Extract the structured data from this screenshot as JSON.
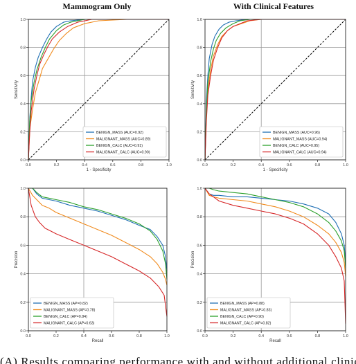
{
  "column_titles": [
    "Mammogram Only",
    "With Clinical Features"
  ],
  "colors": {
    "benign_mass": "#1f6fb4",
    "malignant_mass": "#f08a1c",
    "benign_calc": "#2ca02c",
    "malignant_calc": "#d62728",
    "diagonal": "#000000",
    "grid": "#9a9a9a"
  },
  "caption_fragment": "(A) Results comparing performance with and without additional clinical",
  "chart_data": [
    {
      "type": "line",
      "panel": "roc-mammogram-only",
      "xlabel": "1 - Specificity",
      "ylabel": "Sensitivity",
      "xlim": [
        0,
        1
      ],
      "ylim": [
        0,
        1
      ],
      "xticks": [
        "0.0",
        "0.2",
        "0.4",
        "0.6",
        "0.8",
        "1.0"
      ],
      "yticks": [
        "0.0",
        "0.2",
        "0.4",
        "0.6",
        "0.8",
        "1.0"
      ],
      "grid": true,
      "legend": "bottom-right",
      "diagonal": true,
      "series": [
        {
          "name": "BENIGN_MASS (AUC=0.92)",
          "color": "#1f6fb4",
          "x": [
            0,
            0.01,
            0.02,
            0.03,
            0.05,
            0.07,
            0.1,
            0.13,
            0.16,
            0.2,
            0.25,
            0.3,
            0.4,
            0.6,
            0.8,
            1.0
          ],
          "y": [
            0,
            0.3,
            0.45,
            0.56,
            0.66,
            0.73,
            0.8,
            0.86,
            0.91,
            0.95,
            0.98,
            0.99,
            1.0,
            1.0,
            1.0,
            1.0
          ]
        },
        {
          "name": "MALIGNANT_MASS (AUC=0.89)",
          "color": "#f08a1c",
          "x": [
            0,
            0.01,
            0.03,
            0.05,
            0.08,
            0.1,
            0.14,
            0.18,
            0.22,
            0.27,
            0.32,
            0.4,
            0.5,
            0.7,
            1.0
          ],
          "y": [
            0,
            0.22,
            0.36,
            0.48,
            0.58,
            0.65,
            0.72,
            0.79,
            0.85,
            0.9,
            0.94,
            0.97,
            0.99,
            1.0,
            1.0
          ]
        },
        {
          "name": "BENIGN_CALC (AUC=0.91)",
          "color": "#2ca02c",
          "x": [
            0,
            0.01,
            0.02,
            0.04,
            0.06,
            0.09,
            0.12,
            0.15,
            0.2,
            0.25,
            0.3,
            0.4,
            0.6,
            1.0
          ],
          "y": [
            0,
            0.28,
            0.42,
            0.55,
            0.64,
            0.73,
            0.8,
            0.86,
            0.92,
            0.96,
            0.98,
            1.0,
            1.0,
            1.0
          ]
        },
        {
          "name": "MALIGNANT_CALC (AUC=0.90)",
          "color": "#d62728",
          "x": [
            0,
            0.01,
            0.02,
            0.04,
            0.06,
            0.08,
            0.11,
            0.14,
            0.17,
            0.22,
            0.28,
            0.35,
            0.45,
            0.6,
            1.0
          ],
          "y": [
            0,
            0.2,
            0.35,
            0.5,
            0.6,
            0.68,
            0.75,
            0.81,
            0.86,
            0.91,
            0.95,
            0.98,
            1.0,
            1.0,
            1.0
          ]
        }
      ]
    },
    {
      "type": "line",
      "panel": "roc-with-clinical",
      "xlabel": "1 - Specificity",
      "ylabel": "Sensitivity",
      "xlim": [
        0,
        1
      ],
      "ylim": [
        0,
        1
      ],
      "xticks": [
        "0.0",
        "0.2",
        "0.4",
        "0.6",
        "0.8",
        "1.0"
      ],
      "yticks": [
        "0.0",
        "0.2",
        "0.4",
        "0.6",
        "0.8",
        "1.0"
      ],
      "grid": true,
      "legend": "bottom-right",
      "diagonal": true,
      "series": [
        {
          "name": "BENIGN_MASS (AUC=0.96)",
          "color": "#1f6fb4",
          "x": [
            0,
            0.01,
            0.02,
            0.03,
            0.05,
            0.07,
            0.1,
            0.13,
            0.17,
            0.22,
            0.3,
            0.5,
            1.0
          ],
          "y": [
            0,
            0.42,
            0.6,
            0.72,
            0.82,
            0.88,
            0.93,
            0.96,
            0.98,
            0.99,
            1.0,
            1.0,
            1.0
          ]
        },
        {
          "name": "MALIGNANT_MASS (AUC=0.94)",
          "color": "#f08a1c",
          "x": [
            0,
            0.01,
            0.02,
            0.04,
            0.06,
            0.09,
            0.12,
            0.16,
            0.2,
            0.26,
            0.32,
            0.4,
            0.6,
            1.0
          ],
          "y": [
            0,
            0.32,
            0.5,
            0.64,
            0.74,
            0.82,
            0.88,
            0.92,
            0.95,
            0.97,
            0.99,
            1.0,
            1.0,
            1.0
          ]
        },
        {
          "name": "BENIGN_CALC (AUC=0.95)",
          "color": "#2ca02c",
          "x": [
            0,
            0.01,
            0.02,
            0.04,
            0.06,
            0.08,
            0.11,
            0.15,
            0.2,
            0.25,
            0.32,
            0.5,
            1.0
          ],
          "y": [
            0,
            0.36,
            0.55,
            0.7,
            0.79,
            0.85,
            0.9,
            0.94,
            0.97,
            0.99,
            1.0,
            1.0,
            1.0
          ]
        },
        {
          "name": "MALIGNANT_CALC (AUC=0.94)",
          "color": "#d62728",
          "x": [
            0,
            0.01,
            0.02,
            0.04,
            0.06,
            0.09,
            0.12,
            0.16,
            0.2,
            0.25,
            0.3,
            0.4,
            0.6,
            1.0
          ],
          "y": [
            0,
            0.28,
            0.46,
            0.6,
            0.71,
            0.8,
            0.87,
            0.92,
            0.95,
            0.97,
            0.99,
            1.0,
            1.0,
            1.0
          ]
        }
      ]
    },
    {
      "type": "line",
      "panel": "pr-mammogram-only",
      "xlabel": "Recall",
      "ylabel": "Precision",
      "xlim": [
        0,
        1
      ],
      "ylim": [
        0,
        1
      ],
      "xticks": [
        "0.0",
        "0.2",
        "0.4",
        "0.6",
        "0.8",
        "1.0"
      ],
      "yticks": [
        "0.0",
        "0.2",
        "0.4",
        "0.6",
        "0.8",
        "1.0"
      ],
      "grid": true,
      "legend": "bottom-left",
      "diagonal": false,
      "series": [
        {
          "name": "BENIGN_MASS (AP=0.82)",
          "color": "#1f6fb4",
          "x": [
            0.0,
            0.03,
            0.06,
            0.1,
            0.15,
            0.2,
            0.3,
            0.4,
            0.5,
            0.6,
            0.7,
            0.8,
            0.88,
            0.93,
            0.97,
            0.99,
            1.0
          ],
          "y": [
            1.0,
            1.0,
            0.96,
            0.93,
            0.92,
            0.91,
            0.88,
            0.86,
            0.84,
            0.81,
            0.78,
            0.74,
            0.71,
            0.66,
            0.6,
            0.52,
            0.42
          ]
        },
        {
          "name": "MALIGNANT_MASS (AP=0.78)",
          "color": "#f08a1c",
          "x": [
            0.0,
            0.03,
            0.06,
            0.1,
            0.15,
            0.2,
            0.3,
            0.4,
            0.5,
            0.6,
            0.7,
            0.8,
            0.88,
            0.93,
            0.97,
            0.99,
            1.0
          ],
          "y": [
            1.0,
            0.95,
            0.92,
            0.88,
            0.86,
            0.83,
            0.79,
            0.75,
            0.71,
            0.67,
            0.62,
            0.57,
            0.52,
            0.47,
            0.41,
            0.36,
            0.32
          ]
        },
        {
          "name": "BENIGN_CALC (AP=0.84)",
          "color": "#2ca02c",
          "x": [
            0.0,
            0.03,
            0.06,
            0.1,
            0.15,
            0.2,
            0.3,
            0.4,
            0.5,
            0.6,
            0.7,
            0.8,
            0.88,
            0.93,
            0.97,
            0.99,
            1.0
          ],
          "y": [
            1.0,
            1.0,
            0.97,
            0.94,
            0.93,
            0.92,
            0.9,
            0.87,
            0.85,
            0.82,
            0.79,
            0.75,
            0.7,
            0.64,
            0.56,
            0.47,
            0.36
          ]
        },
        {
          "name": "MALIGNANT_CALC (AP=0.63)",
          "color": "#d62728",
          "x": [
            0.0,
            0.02,
            0.05,
            0.08,
            0.12,
            0.16,
            0.2,
            0.3,
            0.4,
            0.5,
            0.6,
            0.7,
            0.8,
            0.88,
            0.94,
            0.98,
            1.0
          ],
          "y": [
            1.0,
            0.88,
            0.8,
            0.76,
            0.72,
            0.7,
            0.68,
            0.64,
            0.6,
            0.56,
            0.52,
            0.47,
            0.42,
            0.37,
            0.31,
            0.25,
            0.1
          ]
        }
      ]
    },
    {
      "type": "line",
      "panel": "pr-with-clinical",
      "xlabel": "Recall",
      "ylabel": "Precision",
      "xlim": [
        0,
        1
      ],
      "ylim": [
        0,
        1
      ],
      "xticks": [
        "0.0",
        "0.2",
        "0.4",
        "0.6",
        "0.8",
        "1.0"
      ],
      "yticks": [
        "0.0",
        "0.2",
        "0.4",
        "0.6",
        "0.8",
        "1.0"
      ],
      "grid": true,
      "legend": "bottom-left",
      "diagonal": false,
      "series": [
        {
          "name": "BENIGN_MASS (AP=0.88)",
          "color": "#1f6fb4",
          "x": [
            0.0,
            0.03,
            0.06,
            0.1,
            0.2,
            0.3,
            0.4,
            0.5,
            0.6,
            0.7,
            0.8,
            0.88,
            0.93,
            0.97,
            0.99,
            1.0
          ],
          "y": [
            1.0,
            0.96,
            0.95,
            0.95,
            0.94,
            0.94,
            0.93,
            0.92,
            0.91,
            0.89,
            0.86,
            0.82,
            0.76,
            0.68,
            0.6,
            0.48
          ]
        },
        {
          "name": "MALIGNANT_MASS (AP=0.83)",
          "color": "#f08a1c",
          "x": [
            0.0,
            0.03,
            0.06,
            0.1,
            0.2,
            0.3,
            0.4,
            0.5,
            0.6,
            0.7,
            0.8,
            0.88,
            0.93,
            0.97,
            0.99,
            1.0
          ],
          "y": [
            1.0,
            0.95,
            0.94,
            0.93,
            0.92,
            0.91,
            0.89,
            0.87,
            0.84,
            0.8,
            0.74,
            0.68,
            0.62,
            0.55,
            0.48,
            0.38
          ]
        },
        {
          "name": "BENIGN_CALC (AP=0.90)",
          "color": "#2ca02c",
          "x": [
            0.0,
            0.03,
            0.06,
            0.1,
            0.2,
            0.3,
            0.4,
            0.5,
            0.6,
            0.7,
            0.8,
            0.88,
            0.93,
            0.97,
            0.99,
            1.0
          ],
          "y": [
            1.0,
            1.0,
            0.99,
            0.98,
            0.97,
            0.96,
            0.94,
            0.92,
            0.9,
            0.87,
            0.82,
            0.76,
            0.7,
            0.63,
            0.56,
            0.44
          ]
        },
        {
          "name": "MALIGNANT_CALC (AP=0.82)",
          "color": "#d62728",
          "x": [
            0.0,
            0.03,
            0.06,
            0.1,
            0.2,
            0.3,
            0.4,
            0.5,
            0.6,
            0.7,
            0.8,
            0.88,
            0.93,
            0.97,
            0.99,
            1.0
          ],
          "y": [
            1.0,
            0.96,
            0.94,
            0.91,
            0.88,
            0.86,
            0.84,
            0.82,
            0.79,
            0.75,
            0.68,
            0.6,
            0.52,
            0.44,
            0.35,
            0.05
          ]
        }
      ]
    }
  ]
}
